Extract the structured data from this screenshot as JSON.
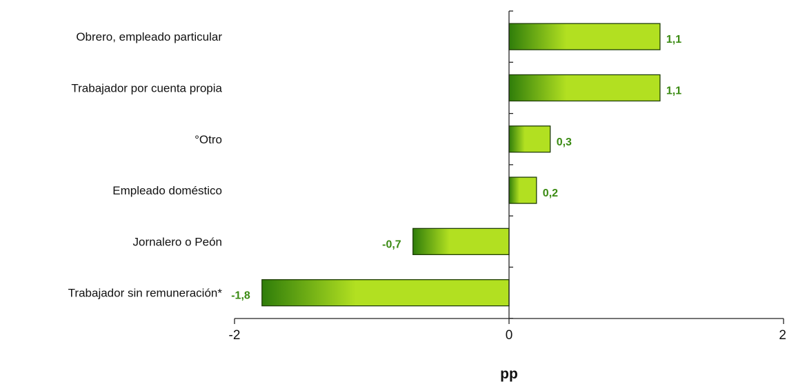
{
  "chart_data": {
    "type": "bar",
    "orientation": "horizontal",
    "categories": [
      "Obrero, empleado particular",
      "Trabajador por cuenta propia",
      "°Otro",
      "Empleado doméstico",
      "Jornalero o Peón",
      "Trabajador sin remuneración*"
    ],
    "values": [
      1.1,
      1.1,
      0.3,
      0.2,
      -0.7,
      -1.8
    ],
    "value_labels": [
      "1,1",
      "1,1",
      "0,3",
      "0,2",
      "-0,7",
      "-1,8"
    ],
    "xlabel": "pp",
    "xlim": [
      -2,
      2
    ],
    "x_ticks": [
      -2,
      0,
      2
    ],
    "x_tick_labels": [
      "-2",
      "0",
      "2"
    ],
    "grid": false,
    "legend": "none",
    "colors": {
      "bar_dark": "#2f7d0a",
      "bar_light": "#b2e021",
      "bar_outline": "#1e3d06",
      "label": "#3a8a12",
      "axis": "#222222"
    }
  }
}
